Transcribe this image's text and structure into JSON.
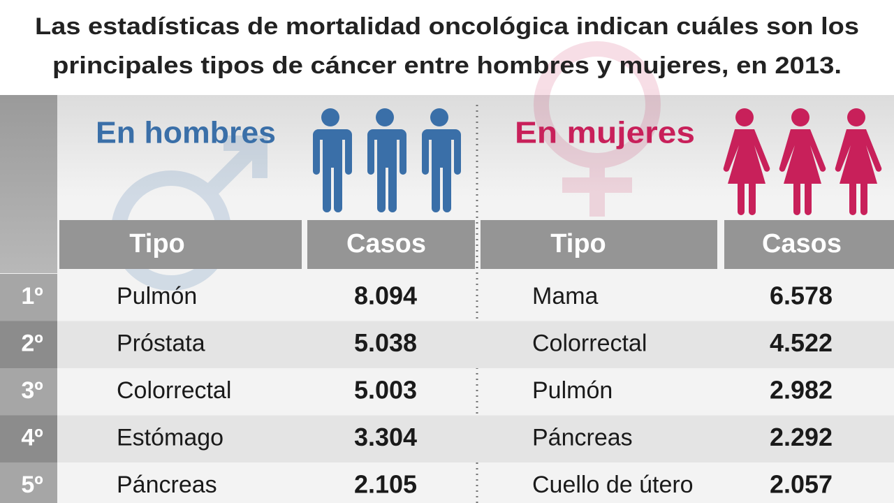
{
  "header": {
    "title": [
      "Las estadísticas de mortalidad oncológica indican cuáles son los",
      "principales tipos de cáncer entre hombres y mujeres, en 2013."
    ]
  },
  "table": {
    "ranks": [
      "1º",
      "2º",
      "3º",
      "4º",
      "5º"
    ],
    "groups": [
      {
        "heading": "En hombres",
        "columns": [
          "Tipo",
          "Casos"
        ],
        "rows": [
          [
            "Pulmón",
            "8.094"
          ],
          [
            "Próstata",
            "5.038"
          ],
          [
            "Colorrectal",
            "5.003"
          ],
          [
            "Estómago",
            "3.304"
          ],
          [
            "Páncreas",
            "2.105"
          ]
        ]
      },
      {
        "heading": "En mujeres",
        "columns": [
          "Tipo",
          "Casos"
        ],
        "rows": [
          [
            "Mama",
            "6.578"
          ],
          [
            "Colorrectal",
            "4.522"
          ],
          [
            "Pulmón",
            "2.982"
          ],
          [
            "Páncreas",
            "2.292"
          ],
          [
            "Cuello de útero",
            "2.057"
          ]
        ]
      }
    ]
  }
}
